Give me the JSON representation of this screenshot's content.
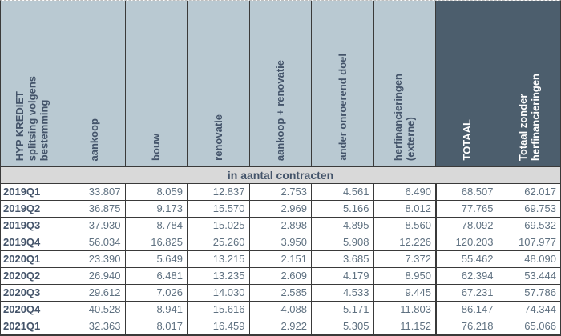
{
  "chart_data": {
    "type": "table",
    "title": "HYP KREDIET splitsing volgens bestemming",
    "corner_header": "HYP KREDIET\nsplitsing volgens\nbestemming",
    "unit_band": "in aantal contracten",
    "columns": [
      {
        "label": "aankoop",
        "emphasis": false
      },
      {
        "label": "bouw",
        "emphasis": false
      },
      {
        "label": "renovatie",
        "emphasis": false
      },
      {
        "label": "aankoop + renovatie",
        "emphasis": false
      },
      {
        "label": "ander onroerend doel",
        "emphasis": false
      },
      {
        "label": "herfinancieringen\n(externe)",
        "emphasis": false
      },
      {
        "label": "TOTAAL",
        "emphasis": true
      },
      {
        "label": "Totaal zonder\nherfinancieringen",
        "emphasis": true
      }
    ],
    "rows": [
      {
        "label": "2019Q1",
        "values": [
          "33.807",
          "8.059",
          "12.837",
          "2.753",
          "4.561",
          "6.490",
          "68.507",
          "62.017"
        ]
      },
      {
        "label": "2019Q2",
        "values": [
          "36.875",
          "9.173",
          "15.570",
          "2.969",
          "5.166",
          "8.012",
          "77.765",
          "69.753"
        ]
      },
      {
        "label": "2019Q3",
        "values": [
          "37.930",
          "8.784",
          "15.025",
          "2.898",
          "4.895",
          "8.560",
          "78.092",
          "69.532"
        ]
      },
      {
        "label": "2019Q4",
        "values": [
          "56.034",
          "16.825",
          "25.260",
          "3.950",
          "5.908",
          "12.226",
          "120.203",
          "107.977"
        ]
      },
      {
        "label": "2020Q1",
        "values": [
          "23.390",
          "5.649",
          "13.215",
          "2.151",
          "3.685",
          "7.372",
          "55.462",
          "48.090"
        ]
      },
      {
        "label": "2020Q2",
        "values": [
          "26.940",
          "6.481",
          "13.235",
          "2.609",
          "4.179",
          "8.950",
          "62.394",
          "53.444"
        ]
      },
      {
        "label": "2020Q3",
        "values": [
          "29.612",
          "7.026",
          "14.030",
          "2.585",
          "4.533",
          "9.445",
          "67.231",
          "57.786"
        ]
      },
      {
        "label": "2020Q4",
        "values": [
          "40.528",
          "8.941",
          "15.616",
          "4.088",
          "5.171",
          "11.803",
          "86.147",
          "74.344"
        ]
      },
      {
        "label": "2021Q1",
        "values": [
          "32.363",
          "8.017",
          "16.459",
          "2.922",
          "5.305",
          "11.152",
          "76.218",
          "65.066"
        ]
      }
    ],
    "colors": {
      "header_light_bg": "#b9c9d2",
      "header_dark_bg": "#4c5e6d",
      "band_bg": "#d9d9d9",
      "header_text": "#44546a",
      "value_text": "#5f7181",
      "border": "#3a3a3a"
    }
  }
}
